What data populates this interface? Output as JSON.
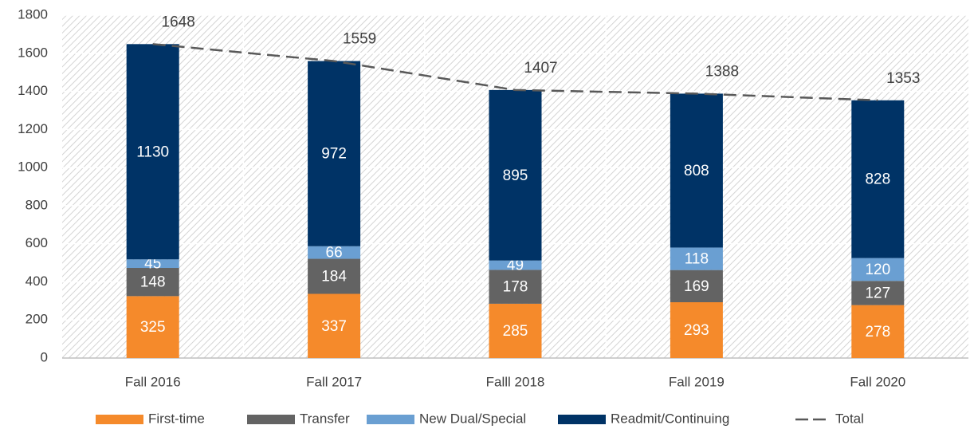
{
  "chart_data": {
    "type": "stacked_bar_line",
    "categories": [
      "Fall 2016",
      "Fall 2017",
      "Falll 2018",
      "Fall 2019",
      "Fall 2020"
    ],
    "series": [
      {
        "name": "First-time",
        "color": "#f58a2b",
        "values": [
          325,
          337,
          285,
          293,
          278
        ]
      },
      {
        "name": "Transfer",
        "color": "#636363",
        "values": [
          148,
          184,
          178,
          169,
          127
        ]
      },
      {
        "name": "New Dual/Special",
        "color": "#6a9fd2",
        "values": [
          45,
          66,
          49,
          118,
          120
        ]
      },
      {
        "name": "Readmit/Continuing",
        "color": "#003366",
        "values": [
          1130,
          972,
          895,
          808,
          828
        ]
      },
      {
        "name": "Total",
        "color": "#595959",
        "type": "line",
        "dashed": true,
        "values": [
          1648,
          1559,
          1407,
          1388,
          1353
        ]
      }
    ],
    "ylim": [
      0,
      1800
    ],
    "yticks": [
      0,
      200,
      400,
      600,
      800,
      1000,
      1200,
      1400,
      1600,
      1800
    ],
    "grid": true,
    "legend": "bottom"
  }
}
